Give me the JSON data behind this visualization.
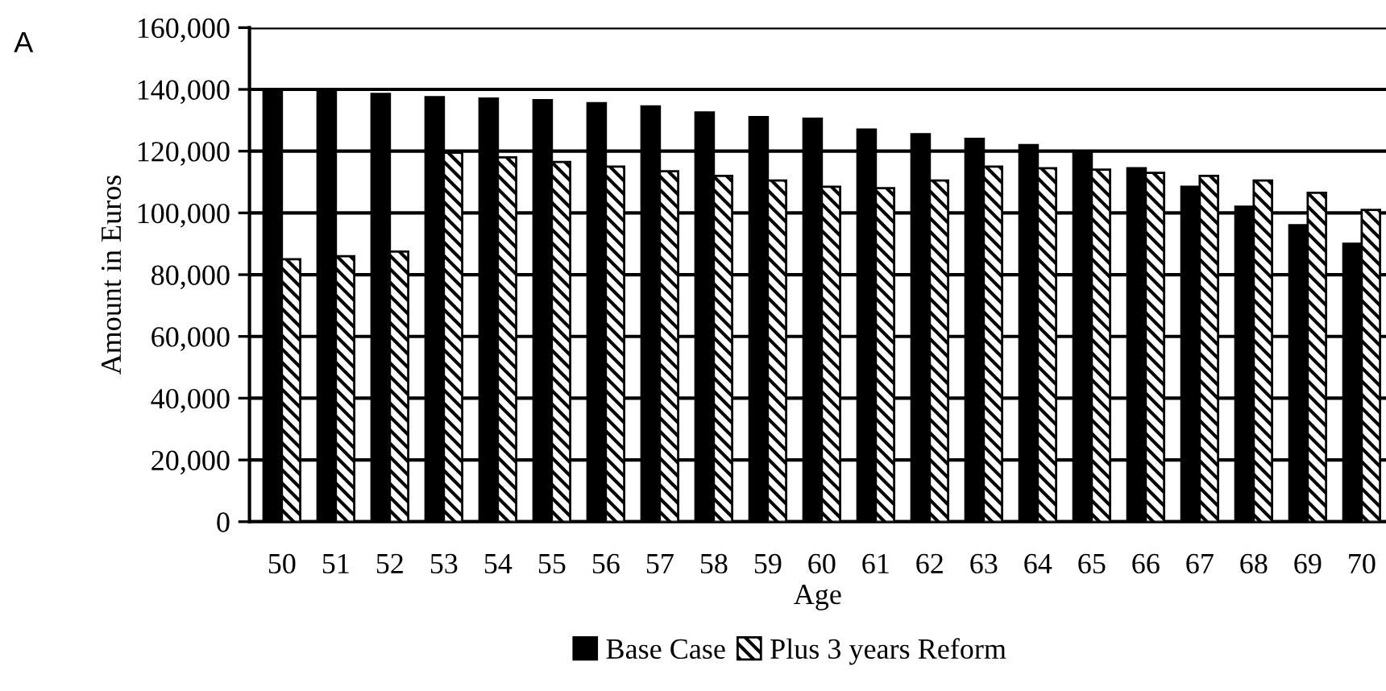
{
  "chart_data": {
    "type": "bar",
    "xlabel": "Age",
    "ylabel": "Amount in Euros",
    "annotations": [
      "A"
    ],
    "categories": [
      "50",
      "51",
      "52",
      "53",
      "54",
      "55",
      "56",
      "57",
      "58",
      "59",
      "60",
      "61",
      "62",
      "63",
      "64",
      "65",
      "66",
      "67",
      "68",
      "69",
      "70"
    ],
    "series": [
      {
        "name": "Base Case",
        "color": "#000000",
        "values": [
          140000,
          139500,
          138500,
          137500,
          137000,
          136500,
          135500,
          134500,
          132500,
          131000,
          130500,
          127000,
          125500,
          124000,
          122000,
          120000,
          114500,
          108500,
          102000,
          96000,
          90000
        ]
      },
      {
        "name": "Plus 3 years Reform",
        "color": "#000000",
        "values": [
          85000,
          86000,
          87500,
          119500,
          118000,
          116500,
          115000,
          113500,
          112000,
          110500,
          108500,
          108000,
          110500,
          115000,
          114500,
          114000,
          113000,
          112000,
          110500,
          106500,
          101000
        ]
      }
    ],
    "ylim": [
      0,
      160000
    ],
    "yticks": [
      {
        "value": 0,
        "label": "0"
      },
      {
        "value": 20000,
        "label": "20,000"
      },
      {
        "value": 40000,
        "label": "40,000"
      },
      {
        "value": 60000,
        "label": "60,000"
      },
      {
        "value": 80000,
        "label": "80,000"
      },
      {
        "value": 100000,
        "label": "100,000"
      },
      {
        "value": 120000,
        "label": "120,000"
      },
      {
        "value": 140000,
        "label": "140,000"
      },
      {
        "value": 160000,
        "label": "160,000"
      }
    ],
    "grid": "y",
    "legend": "bottom"
  }
}
